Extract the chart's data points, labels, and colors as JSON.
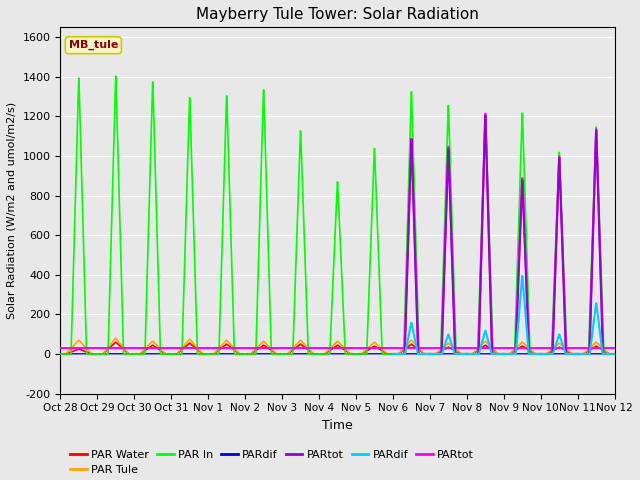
{
  "title": "Mayberry Tule Tower: Solar Radiation",
  "ylabel": "Solar Radiation (W/m2 and umol/m2/s)",
  "xlabel": "Time",
  "ylim": [
    -200,
    1650
  ],
  "yticks": [
    -200,
    0,
    200,
    400,
    600,
    800,
    1000,
    1200,
    1400,
    1600
  ],
  "bg_color": "#e8e8e8",
  "legend_label": "MB_tule",
  "legend_label_color": "#8B0000",
  "legend_label_bg": "#f5f5c8",
  "xtick_labels": [
    "Oct 28",
    "Oct 29",
    "Oct 30",
    "Oct 31",
    "Nov 1",
    "Nov 2",
    "Nov 3",
    "Nov 4",
    "Nov 5",
    "Nov 6",
    "Nov 7",
    "Nov 8",
    "Nov 9",
    "Nov 10",
    "Nov 11",
    "Nov 12"
  ],
  "colors": {
    "par_water": "#ff0000",
    "par_tule": "#ffa500",
    "par_in": "#00ff00",
    "pardif_blue": "#0000cd",
    "partot_purple": "#9900cc",
    "pardif_cyan": "#00ccff",
    "partot_magenta": "#ff00ff"
  },
  "peaks_green": [
    1410,
    1420,
    1390,
    1310,
    1320,
    1350,
    1140,
    880,
    1050,
    1340,
    1270,
    1220,
    1230,
    1030,
    1160
  ],
  "peaks_magenta": [
    0,
    0,
    0,
    0,
    0,
    0,
    0,
    0,
    0,
    1100,
    1060,
    1230,
    900,
    1010,
    1150
  ],
  "peaks_cyan": [
    0,
    0,
    0,
    0,
    0,
    0,
    0,
    0,
    0,
    160,
    100,
    120,
    400,
    100,
    260
  ],
  "par_water_day_peaks": [
    25,
    60,
    45,
    55,
    50,
    45,
    50,
    45,
    40,
    50,
    35,
    45,
    40,
    35,
    40
  ],
  "par_tule_day_peaks": [
    70,
    80,
    65,
    75,
    70,
    65,
    70,
    65,
    60,
    70,
    55,
    65,
    60,
    55,
    60
  ]
}
